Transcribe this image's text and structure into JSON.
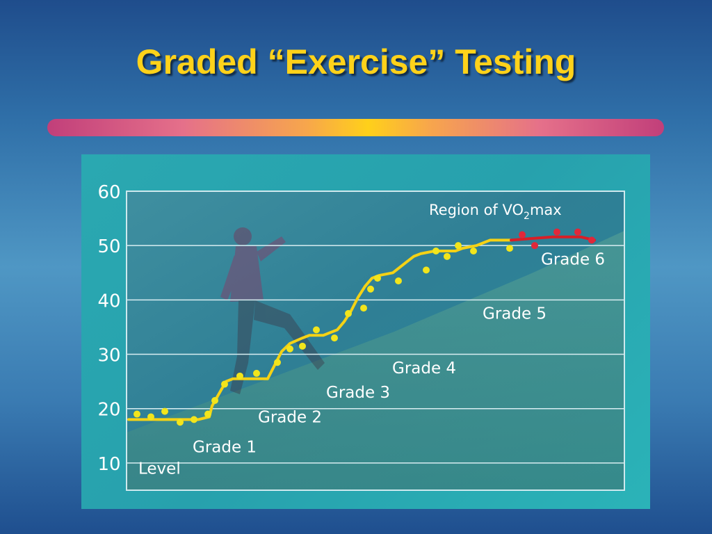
{
  "slide": {
    "title": "Graded “Exercise” Testing"
  },
  "colors": {
    "title": "#ffd21a",
    "curve": "#f5d215",
    "points": "#f2e51c",
    "vo2max_curve": "#d91e26",
    "vo2max_points": "#e0283a",
    "panel": "#2aa8b1",
    "plot_background": "#2f7f93"
  },
  "chart_data": {
    "type": "line",
    "title": "",
    "xlabel": "",
    "ylabel": "",
    "ylim": [
      5,
      60
    ],
    "yticks": [
      10,
      20,
      30,
      40,
      50,
      60
    ],
    "grid": true,
    "background_photo": "runner running uphill (faded)",
    "annotations": {
      "region": {
        "pre": "Region of VO",
        "sub": "2",
        "post": "max"
      },
      "grades": [
        {
          "label": "Level",
          "y": 8
        },
        {
          "label": "Grade 1",
          "y": 12
        },
        {
          "label": "Grade 2",
          "y": 17.5
        },
        {
          "label": "Grade 3",
          "y": 22
        },
        {
          "label": "Grade 4",
          "y": 26.5
        },
        {
          "label": "Grade 5",
          "y": 36.5
        },
        {
          "label": "Grade 6",
          "y": 46.5
        }
      ]
    },
    "series": [
      {
        "x": [
          0,
          14,
          26,
          40,
          50,
          60,
          70,
          80,
          92,
          100,
          116,
          120,
          140,
          150,
          160,
          180,
          200,
          210,
          220,
          232,
          250,
          260,
          280,
          290,
          300,
          310,
          320,
          330,
          340,
          350,
          360,
          380,
          400,
          410,
          420,
          440,
          460,
          470,
          480,
          500,
          510,
          520,
          540,
          550
        ],
        "y": [
          18,
          18,
          18,
          18,
          18,
          18,
          18,
          18,
          18,
          18,
          18.5,
          20.5,
          25,
          25.5,
          25.5,
          25.5,
          25.5,
          28,
          30.5,
          32,
          33,
          33.5,
          33.5,
          34,
          34.5,
          36,
          38,
          40.5,
          42.5,
          44,
          44.5,
          45,
          47,
          48,
          48.5,
          49,
          49,
          49,
          49.5,
          50,
          50.5,
          51,
          51,
          51
        ],
        "color": "#f5d215"
      },
      {
        "x": [
          12,
          32,
          52,
          74,
          94,
          114,
          124,
          138,
          160,
          184,
          214,
          232,
          250,
          270,
          296,
          316,
          338,
          348,
          358,
          388,
          428,
          442,
          458,
          474,
          496,
          548,
          566,
          584,
          616,
          646,
          666
        ],
        "y": [
          19,
          18.5,
          19.5,
          17.5,
          18,
          19,
          21.5,
          24.5,
          26,
          26.5,
          28.5,
          31,
          31.5,
          34.5,
          33,
          37.5,
          38.5,
          42,
          44,
          43.5,
          45.5,
          49,
          48,
          50,
          49,
          49.5,
          52,
          50,
          52.5,
          52.5,
          51
        ],
        "color": "#f2e51c"
      },
      {
        "x": [
          550,
          570,
          590,
          610,
          630,
          650,
          670
        ],
        "y": [
          51,
          51.2,
          51.4,
          51.6,
          51.6,
          51.6,
          51
        ],
        "color": "#d91e26"
      }
    ]
  }
}
